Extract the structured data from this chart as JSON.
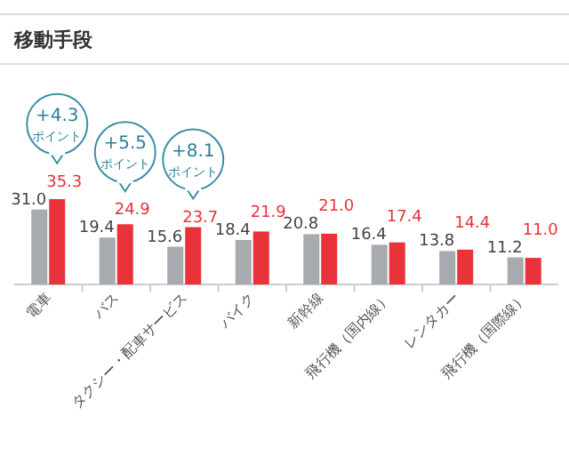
{
  "chart_data": {
    "type": "bar",
    "title": "移動手段",
    "categories": [
      "電車",
      "バス",
      "タクシー・配車サービス",
      "バイク",
      "新幹線",
      "飛行機（国内線）",
      "レンタカー",
      "飛行機（国際線）"
    ],
    "series": [
      {
        "color": "#a7abaf",
        "values": [
          31.0,
          19.4,
          15.6,
          18.4,
          20.8,
          16.4,
          13.8,
          11.2
        ],
        "value_labels": [
          "31.0",
          "19.4",
          "15.6",
          "18.4",
          "20.8",
          "16.4",
          "13.8",
          "11.2"
        ]
      },
      {
        "color": "#e8333a",
        "values": [
          35.3,
          24.9,
          23.7,
          21.9,
          21.0,
          17.4,
          14.4,
          11.0
        ],
        "value_labels": [
          "35.3",
          "24.9",
          "23.7",
          "21.9",
          "21.0",
          "17.4",
          "14.4",
          "11.0"
        ]
      }
    ],
    "annotations": [
      "+4.3\nポイント",
      "+5.5\nポイント",
      "+8.1\nポイント"
    ]
  }
}
